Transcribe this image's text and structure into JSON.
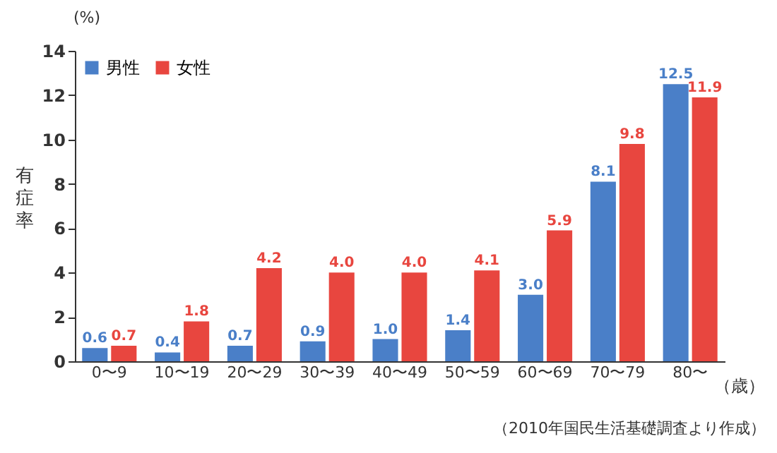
{
  "chart_data": {
    "type": "bar",
    "ylabel": "有症率",
    "xlabel": "（歳）",
    "categories": [
      "0〜9",
      "10〜19",
      "20〜29",
      "30〜39",
      "40〜49",
      "50〜59",
      "60〜69",
      "70〜79",
      "80〜"
    ],
    "series": [
      {
        "name": "男性",
        "color": "#4a7fc8",
        "values": [
          0.6,
          0.4,
          0.7,
          0.9,
          1.0,
          1.4,
          3.0,
          8.1,
          12.5
        ],
        "value_labels": [
          "0.6",
          "0.4",
          "0.7",
          "0.9",
          "1.0",
          "1.4",
          "3.0",
          "8.1",
          "12.5"
        ]
      },
      {
        "name": "女性",
        "color": "#e8463f",
        "values": [
          0.7,
          1.8,
          4.2,
          4.0,
          4.0,
          4.1,
          5.9,
          9.8,
          11.9
        ],
        "value_labels": [
          "0.7",
          "1.8",
          "4.2",
          "4.0",
          "4.0",
          "4.1",
          "5.9",
          "9.8",
          "11.9"
        ]
      }
    ],
    "ylim": [
      0,
      14
    ],
    "yticks": [
      0,
      2,
      4,
      6,
      8,
      10,
      12,
      14
    ],
    "grid": false,
    "legend": "top left",
    "annotations": [
      "(%)",
      "（2010年国民生活基礎調査より作成）"
    ]
  }
}
